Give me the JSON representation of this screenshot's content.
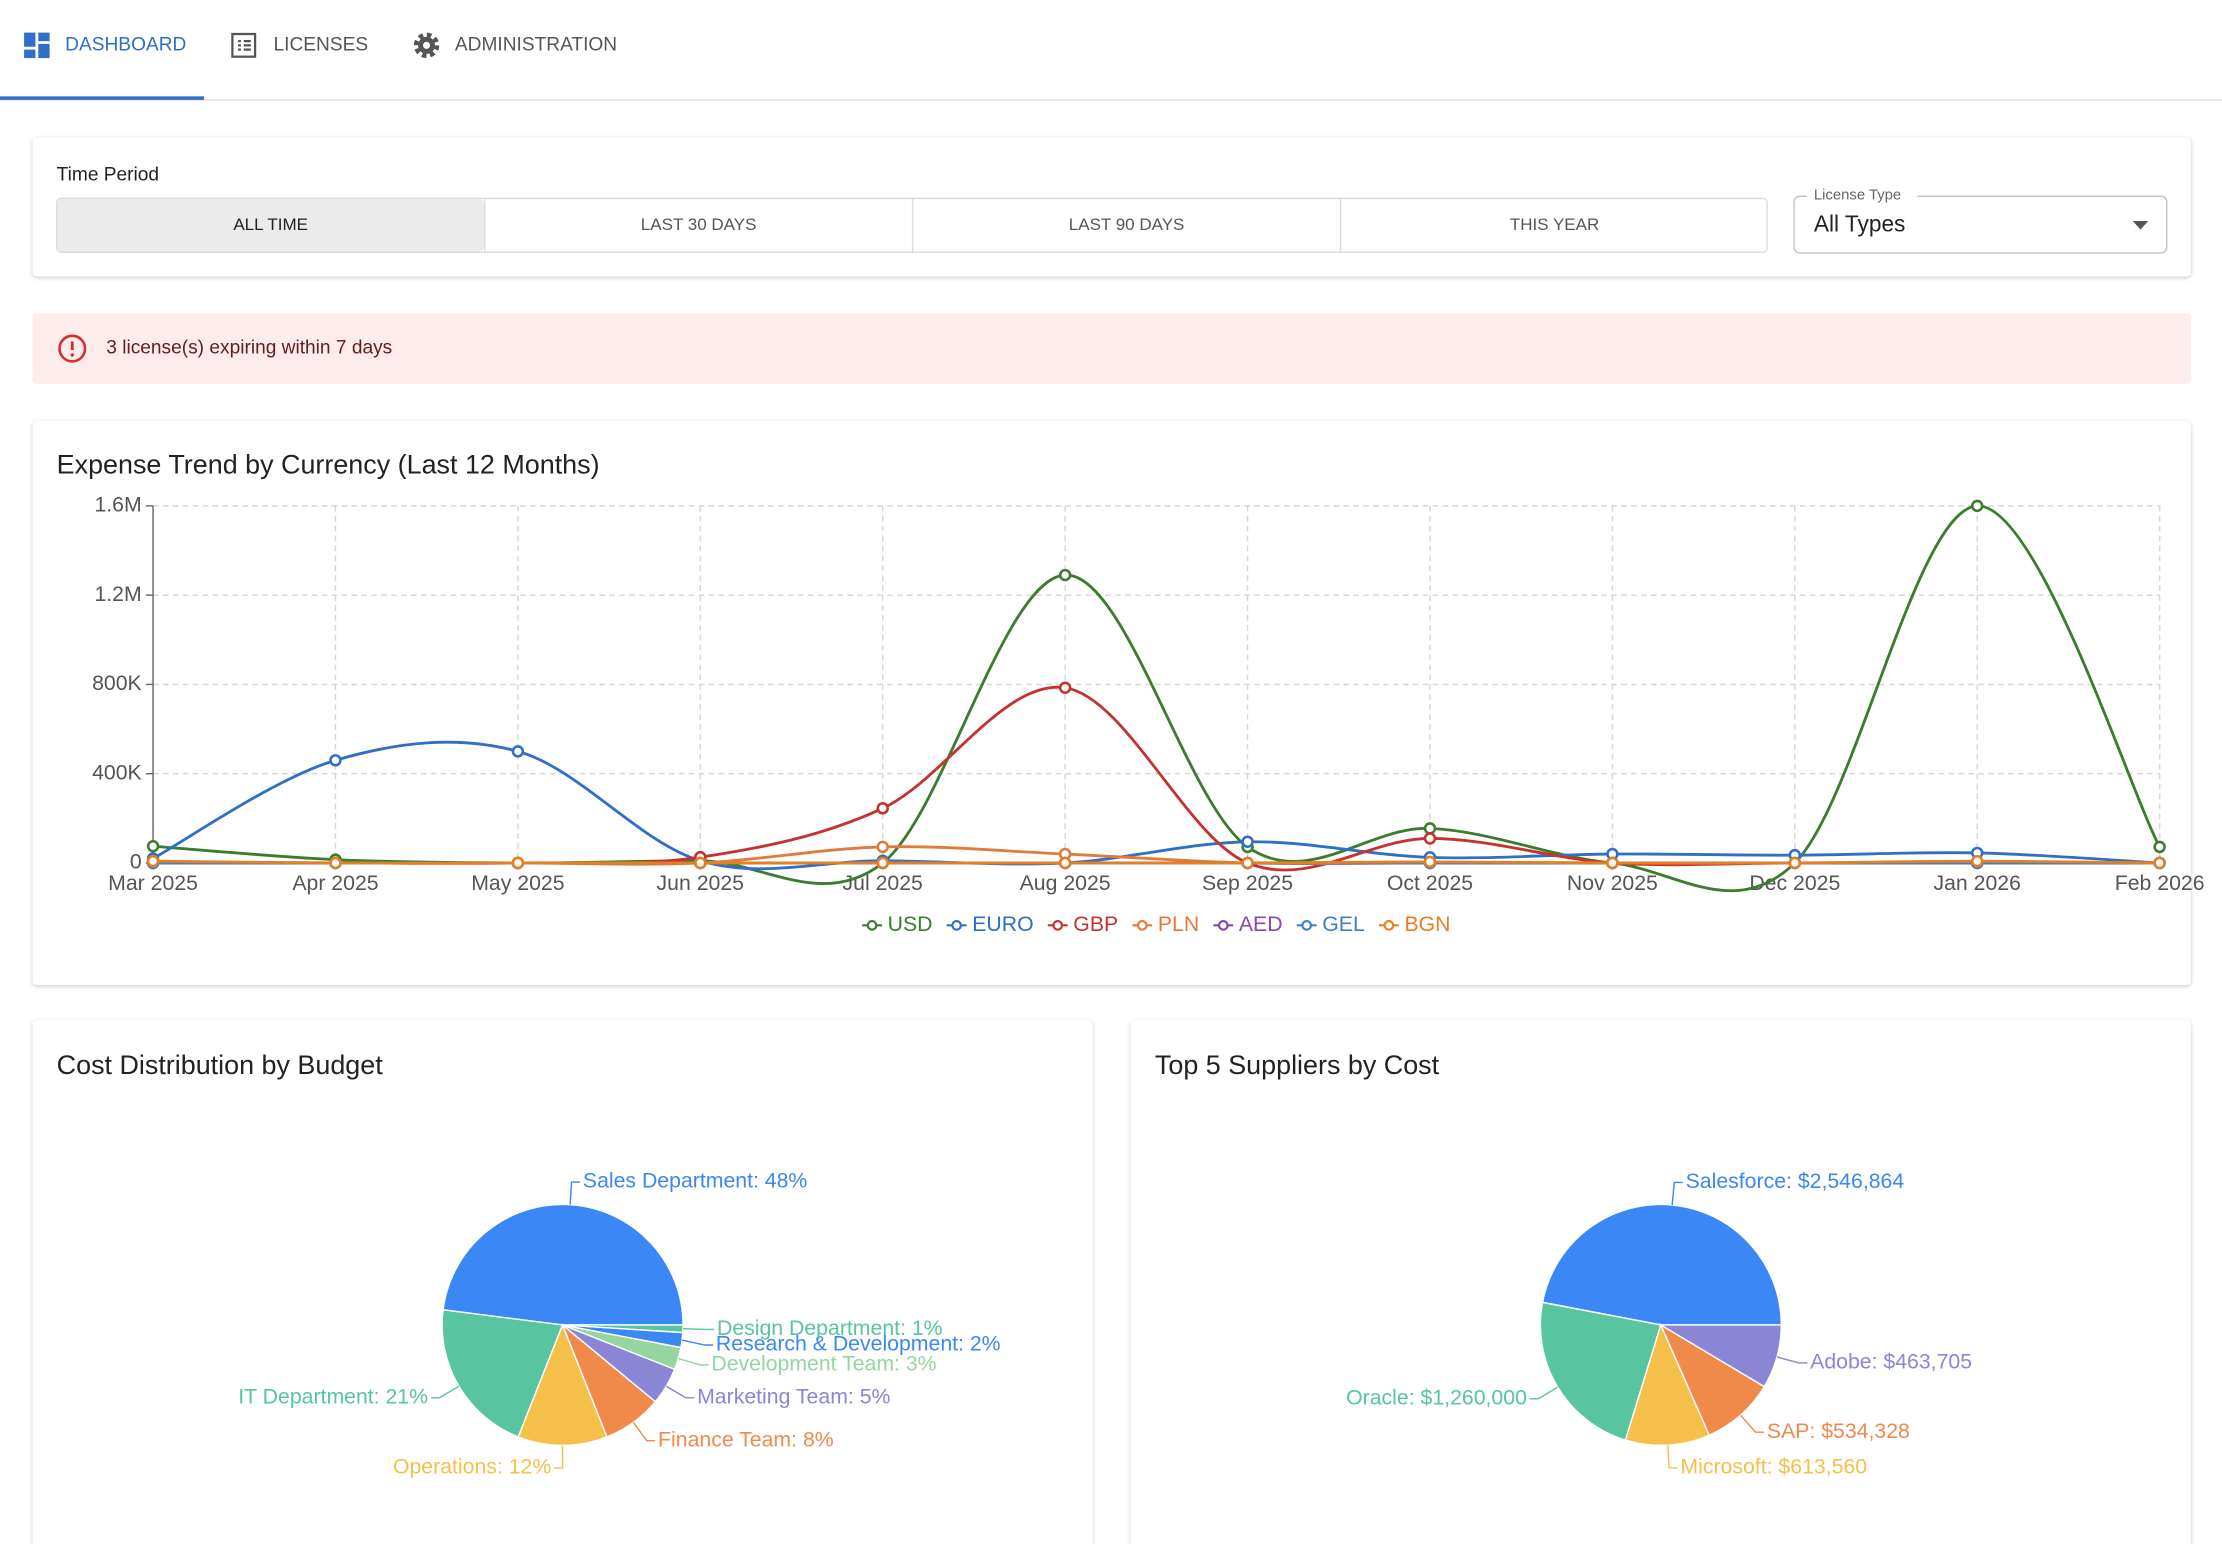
{
  "nav": {
    "tabs": [
      "DASHBOARD",
      "LICENSES",
      "ADMINISTRATION"
    ]
  },
  "filters": {
    "time_period_label": "Time Period",
    "time_period_options": [
      "ALL TIME",
      "LAST 30 DAYS",
      "LAST 90 DAYS",
      "THIS YEAR"
    ],
    "license_type_label": "License Type",
    "license_type_value": "All Types"
  },
  "alert": {
    "text": "3 license(s) expiring within 7 days"
  },
  "chart_data": [
    {
      "type": "line",
      "title": "Expense Trend by Currency (Last 12 Months)",
      "categories": [
        "Mar 2025",
        "Apr 2025",
        "May 2025",
        "Jun 2025",
        "Jul 2025",
        "Aug 2025",
        "Sep 2025",
        "Oct 2025",
        "Nov 2025",
        "Dec 2025",
        "Jan 2026",
        "Feb 2026"
      ],
      "ylim": [
        0,
        1600000
      ],
      "yticks": [
        0,
        {
          "value": 400000,
          "label": "400K"
        },
        {
          "value": 800000,
          "label": "800K"
        },
        {
          "value": 1200000,
          "label": "1.2M"
        },
        {
          "value": 1600000,
          "label": "1.6M"
        }
      ],
      "grid": true,
      "legend": "bottom",
      "series": [
        {
          "name": "USD",
          "color": "#3b7d2f",
          "values": [
            75000,
            15000,
            0,
            10000,
            0,
            1290000,
            72000,
            155000,
            0,
            0,
            1600000,
            72000
          ]
        },
        {
          "name": "EURO",
          "color": "#2f6fc6",
          "values": [
            20000,
            460000,
            500000,
            10000,
            10000,
            0,
            95000,
            25000,
            40000,
            35000,
            45000,
            0
          ]
        },
        {
          "name": "GBP",
          "color": "#c4332f",
          "values": [
            0,
            0,
            0,
            26000,
            245000,
            785000,
            0,
            110000,
            0,
            0,
            0,
            0
          ]
        },
        {
          "name": "PLN",
          "color": "#e07b39",
          "values": [
            5000,
            0,
            0,
            0,
            72000,
            40000,
            0,
            0,
            0,
            0,
            5000,
            0
          ]
        },
        {
          "name": "AED",
          "color": "#8e44ad",
          "values": [
            0,
            0,
            0,
            0,
            0,
            0,
            0,
            0,
            0,
            0,
            0,
            0
          ]
        },
        {
          "name": "GEL",
          "color": "#3b82c4",
          "values": [
            0,
            0,
            0,
            0,
            0,
            0,
            0,
            0,
            0,
            0,
            0,
            0
          ]
        },
        {
          "name": "BGN",
          "color": "#e67e22",
          "values": [
            8000,
            0,
            0,
            0,
            0,
            0,
            0,
            5000,
            0,
            0,
            8000,
            0
          ]
        }
      ]
    },
    {
      "type": "pie",
      "title": "Cost Distribution by Budget",
      "categories": [
        "Sales Department",
        "IT Department",
        "Operations",
        "Finance Team",
        "Marketing Team",
        "Development Team",
        "Research & Development",
        "Design Department"
      ],
      "values": [
        48,
        21,
        12,
        8,
        5,
        3,
        2,
        1
      ],
      "value_labels": [
        "Sales Department: 48%",
        "IT Department: 21%",
        "Operations: 12%",
        "Finance Team: 8%",
        "Marketing Team: 5%",
        "Development Team: 3%",
        "Research & Development: 2%",
        "Design Department: 1%"
      ],
      "colors": [
        "#3b87f5",
        "#58c4a0",
        "#f5c04a",
        "#f08a4b",
        "#8b85d6",
        "#95d5a0",
        "#3b87f5",
        "#58c4a0"
      ]
    },
    {
      "type": "pie",
      "title": "Top 5 Suppliers by Cost",
      "categories": [
        "Salesforce",
        "Oracle",
        "Microsoft",
        "SAP",
        "Adobe"
      ],
      "values": [
        2546864,
        1260000,
        613560,
        534328,
        463705
      ],
      "value_labels": [
        "Salesforce: $2,546,864",
        "Oracle: $1,260,000",
        "Microsoft: $613,560",
        "SAP: $534,328",
        "Adobe: $463,705"
      ],
      "colors": [
        "#3b87f5",
        "#58c4a0",
        "#f5c04a",
        "#f08a4b",
        "#8b85d6"
      ]
    }
  ]
}
